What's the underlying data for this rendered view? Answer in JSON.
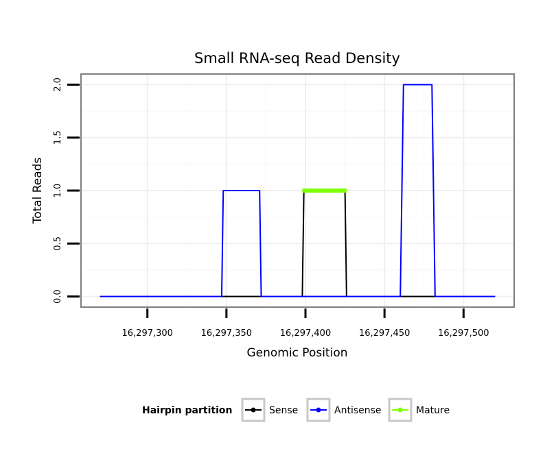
{
  "chart_data": {
    "type": "line",
    "title": "Small RNA-seq Read Density",
    "xlabel": "Genomic Position",
    "ylabel": "Total Reads",
    "xlim": [
      16297258,
      16297532
    ],
    "ylim": [
      -0.1,
      2.1
    ],
    "x_ticks": [
      16297300,
      16297350,
      16297400,
      16297450,
      16297500
    ],
    "x_tick_labels": [
      "16,297,300",
      "16,297,350",
      "16,297,400",
      "16,297,450",
      "16,297,500"
    ],
    "y_ticks": [
      0,
      0.5,
      1,
      1.5,
      2
    ],
    "y_tick_labels": [
      "0.0",
      "0.5",
      "1.0",
      "1.5",
      "2.0"
    ],
    "grid": true,
    "legend": {
      "title": "Hairpin partition",
      "position": "bottom",
      "entries": [
        "Sense",
        "Antisense",
        "Mature"
      ]
    },
    "series": [
      {
        "name": "Sense",
        "color": "#000000",
        "x": [
          16297270,
          16297398,
          16297399,
          16297425,
          16297426,
          16297520
        ],
        "y": [
          0,
          0,
          1,
          1,
          0,
          0
        ]
      },
      {
        "name": "Antisense",
        "color": "#0000ff",
        "x": [
          16297270,
          16297347,
          16297348,
          16297371,
          16297372,
          16297398,
          16297426,
          16297460,
          16297462,
          16297480,
          16297482,
          16297520
        ],
        "y": [
          0,
          0,
          1,
          1,
          0,
          0,
          0,
          0,
          2,
          2,
          0,
          0
        ]
      },
      {
        "name": "Mature",
        "color": "#7fff00",
        "x": [
          16297398,
          16297426
        ],
        "y": [
          1,
          1
        ]
      }
    ]
  }
}
